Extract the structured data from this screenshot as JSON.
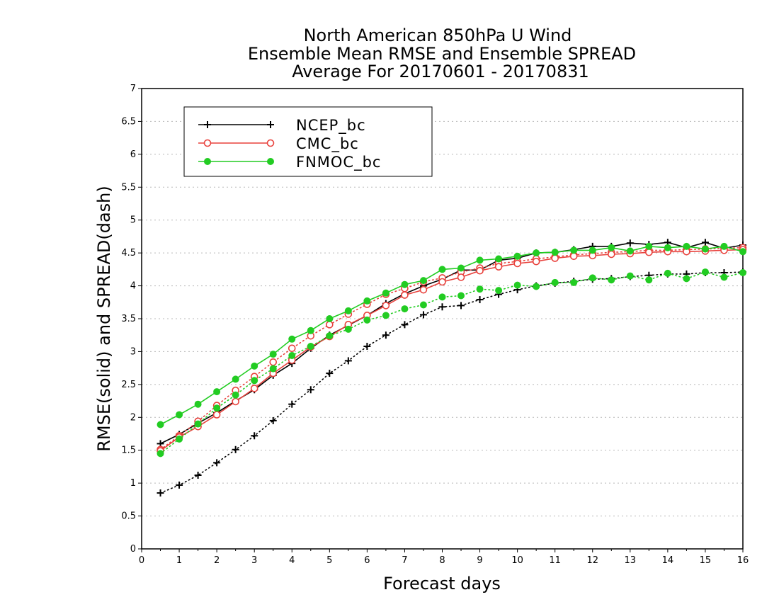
{
  "chart_data": {
    "type": "line",
    "title": [
      "North American 850hPa U Wind",
      "Ensemble Mean RMSE and Ensemble SPREAD",
      "Average For 20170601 - 20170831"
    ],
    "xlabel": "Forecast days",
    "ylabel": "RMSE(solid) and SPREAD(dash)",
    "xlim": [
      0,
      16
    ],
    "ylim": [
      0,
      7
    ],
    "xticks": [
      "0",
      "1",
      "2",
      "3",
      "4",
      "5",
      "6",
      "7",
      "8",
      "9",
      "10",
      "11",
      "12",
      "13",
      "14",
      "15",
      "16"
    ],
    "yticks": [
      "0",
      "0.5",
      "1",
      "1.5",
      "2",
      "2.5",
      "3",
      "3.5",
      "4",
      "4.5",
      "5",
      "5.5",
      "6",
      "6.5",
      "7"
    ],
    "grid": true,
    "legend_position": "top-left",
    "x": [
      0.5,
      1,
      1.5,
      2,
      2.5,
      3,
      3.5,
      4,
      4.5,
      5,
      5.5,
      6,
      6.5,
      7,
      7.5,
      8,
      8.5,
      9,
      9.5,
      10,
      10.5,
      11,
      11.5,
      12,
      12.5,
      13,
      13.5,
      14,
      14.5,
      15,
      15.5,
      16
    ],
    "series": [
      {
        "name": "NCEP_bc",
        "color": "#000000",
        "marker": "plus",
        "rmse": [
          1.6,
          1.74,
          1.91,
          2.07,
          2.25,
          2.42,
          2.64,
          2.82,
          3.05,
          3.25,
          3.4,
          3.55,
          3.73,
          3.88,
          4.0,
          4.1,
          4.24,
          4.24,
          4.39,
          4.42,
          4.5,
          4.51,
          4.55,
          4.6,
          4.6,
          4.65,
          4.63,
          4.66,
          4.58,
          4.66,
          4.57,
          4.62
        ],
        "spread": [
          0.85,
          0.97,
          1.12,
          1.31,
          1.51,
          1.72,
          1.95,
          2.2,
          2.42,
          2.67,
          2.86,
          3.08,
          3.25,
          3.41,
          3.56,
          3.68,
          3.7,
          3.79,
          3.87,
          3.94,
          4.0,
          4.04,
          4.07,
          4.1,
          4.11,
          4.14,
          4.16,
          4.18,
          4.18,
          4.2,
          4.2,
          4.21
        ]
      },
      {
        "name": "CMC_bc",
        "color": "#e8413c",
        "marker": "open-circle",
        "rmse": [
          1.49,
          1.7,
          1.86,
          2.04,
          2.24,
          2.44,
          2.67,
          2.87,
          3.07,
          3.23,
          3.41,
          3.55,
          3.7,
          3.86,
          3.94,
          4.06,
          4.13,
          4.23,
          4.29,
          4.34,
          4.37,
          4.42,
          4.45,
          4.46,
          4.48,
          4.49,
          4.51,
          4.52,
          4.52,
          4.53,
          4.54,
          4.55
        ],
        "spread": [
          1.51,
          1.72,
          1.94,
          2.18,
          2.41,
          2.62,
          2.84,
          3.05,
          3.24,
          3.41,
          3.57,
          3.72,
          3.87,
          3.96,
          4.06,
          4.12,
          4.21,
          4.27,
          4.34,
          4.37,
          4.41,
          4.44,
          4.47,
          4.49,
          4.51,
          4.52,
          4.54,
          4.54,
          4.55,
          4.56,
          4.57,
          4.58
        ]
      },
      {
        "name": "FNMOC_bc",
        "color": "#22cc22",
        "marker": "filled-circle",
        "rmse": [
          1.89,
          2.04,
          2.2,
          2.39,
          2.58,
          2.78,
          2.96,
          3.19,
          3.32,
          3.5,
          3.62,
          3.77,
          3.89,
          4.02,
          4.08,
          4.25,
          4.27,
          4.39,
          4.41,
          4.45,
          4.5,
          4.51,
          4.54,
          4.54,
          4.58,
          4.53,
          4.6,
          4.58,
          4.6,
          4.56,
          4.6,
          4.52
        ],
        "spread": [
          1.45,
          1.67,
          1.9,
          2.14,
          2.34,
          2.56,
          2.74,
          2.94,
          3.08,
          3.24,
          3.34,
          3.48,
          3.55,
          3.65,
          3.71,
          3.83,
          3.85,
          3.95,
          3.93,
          4.01,
          3.99,
          4.05,
          4.05,
          4.12,
          4.09,
          4.15,
          4.09,
          4.19,
          4.11,
          4.21,
          4.13,
          4.2
        ]
      }
    ]
  }
}
